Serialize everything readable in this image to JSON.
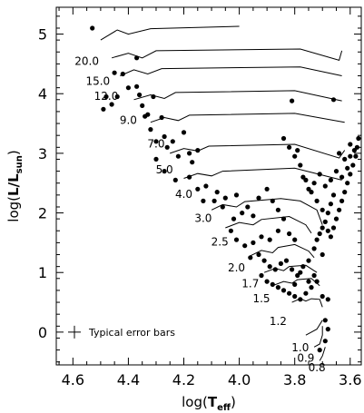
{
  "chart_data": {
    "type": "scatter",
    "title": "",
    "xlabel": "log(T_eff)",
    "ylabel": "log(L/L_sun)",
    "xlim": [
      4.66,
      3.56
    ],
    "ylim": [
      -0.55,
      5.45
    ],
    "xaxis_reversed": true,
    "xticks": [
      4.6,
      4.4,
      4.2,
      4.0,
      3.8,
      3.6
    ],
    "xtick_labels": [
      "4.6",
      "4.4",
      "4.2",
      "4.0",
      "3.8",
      "3.6"
    ],
    "yticks": [
      0,
      1,
      2,
      3,
      4,
      5
    ],
    "ytick_labels": [
      "0",
      "1",
      "2",
      "3",
      "4",
      "5"
    ],
    "legend": {
      "label": "Typical error bars",
      "position": "bottom-left"
    },
    "tracks": [
      {
        "mass_label": "20.0",
        "points": [
          [
            4.5,
            4.9
          ],
          [
            4.44,
            5.07
          ],
          [
            4.4,
            5.0
          ],
          [
            4.32,
            5.09
          ],
          [
            4.0,
            5.13
          ]
        ]
      },
      {
        "mass_label": "15.0",
        "points": [
          [
            4.46,
            4.6
          ],
          [
            4.4,
            4.68
          ],
          [
            4.35,
            4.6
          ],
          [
            4.3,
            4.72
          ],
          [
            3.78,
            4.75
          ],
          [
            3.64,
            4.56
          ],
          [
            3.63,
            4.72
          ]
        ]
      },
      {
        "mass_label": "12.0",
        "points": [
          [
            4.43,
            4.3
          ],
          [
            4.38,
            4.4
          ],
          [
            4.33,
            4.33
          ],
          [
            4.28,
            4.42
          ],
          [
            3.78,
            4.45
          ],
          [
            3.63,
            4.3
          ]
        ]
      },
      {
        "mass_label": "9.0",
        "points": [
          [
            4.38,
            3.9
          ],
          [
            4.32,
            3.98
          ],
          [
            4.27,
            3.92
          ],
          [
            4.23,
            4.02
          ],
          [
            3.8,
            4.05
          ],
          [
            3.63,
            3.88
          ]
        ]
      },
      {
        "mass_label": "7.0",
        "points": [
          [
            4.32,
            3.52
          ],
          [
            4.27,
            3.6
          ],
          [
            4.22,
            3.55
          ],
          [
            4.18,
            3.64
          ],
          [
            3.8,
            3.67
          ],
          [
            3.62,
            3.52
          ]
        ]
      },
      {
        "mass_label": "5.0",
        "points": [
          [
            4.25,
            3.0
          ],
          [
            4.2,
            3.08
          ],
          [
            4.15,
            3.04
          ],
          [
            4.11,
            3.12
          ],
          [
            3.8,
            3.15
          ],
          [
            3.64,
            2.92
          ],
          [
            3.62,
            3.05
          ]
        ]
      },
      {
        "mass_label": "4.0",
        "points": [
          [
            4.2,
            2.58
          ],
          [
            4.15,
            2.66
          ],
          [
            4.1,
            2.62
          ],
          [
            4.06,
            2.7
          ],
          [
            3.8,
            2.75
          ],
          [
            3.63,
            2.55
          ]
        ]
      },
      {
        "mass_label": "3.0",
        "points": [
          [
            4.1,
            2.05
          ],
          [
            4.06,
            2.14
          ],
          [
            4.01,
            2.1
          ],
          [
            3.98,
            2.19
          ],
          [
            3.85,
            2.24
          ],
          [
            3.78,
            2.2
          ],
          [
            3.72,
            2.05
          ],
          [
            3.7,
            1.8
          ]
        ]
      },
      {
        "mass_label": "2.5",
        "points": [
          [
            4.05,
            1.75
          ],
          [
            4.0,
            1.84
          ],
          [
            3.95,
            1.8
          ],
          [
            3.92,
            1.89
          ],
          [
            3.82,
            1.94
          ],
          [
            3.76,
            1.8
          ],
          [
            3.74,
            1.66
          ]
        ]
      },
      {
        "mass_label": "2.0",
        "points": [
          [
            3.96,
            1.28
          ],
          [
            3.92,
            1.37
          ],
          [
            3.88,
            1.33
          ],
          [
            3.86,
            1.42
          ],
          [
            3.8,
            1.47
          ],
          [
            3.75,
            1.36
          ],
          [
            3.73,
            1.25
          ]
        ]
      },
      {
        "mass_label": "1.7",
        "points": [
          [
            3.91,
            1.0
          ],
          [
            3.87,
            1.07
          ],
          [
            3.84,
            1.03
          ],
          [
            3.82,
            1.1
          ],
          [
            3.76,
            1.12
          ],
          [
            3.72,
            1.0
          ]
        ]
      },
      {
        "mass_label": "1.5",
        "points": [
          [
            3.88,
            0.78
          ],
          [
            3.84,
            0.85
          ],
          [
            3.81,
            0.82
          ],
          [
            3.79,
            0.88
          ],
          [
            3.74,
            0.9
          ],
          [
            3.71,
            0.78
          ]
        ]
      },
      {
        "mass_label": "1.2",
        "points": [
          [
            3.81,
            0.5
          ],
          [
            3.78,
            0.56
          ],
          [
            3.76,
            0.52
          ],
          [
            3.74,
            0.56
          ],
          [
            3.71,
            0.55
          ],
          [
            3.7,
            0.42
          ]
        ]
      },
      {
        "mass_label": "1.0",
        "points": [
          [
            3.76,
            -0.05
          ],
          [
            3.74,
            0.0
          ],
          [
            3.72,
            0.05
          ],
          [
            3.7,
            0.2
          ]
        ]
      },
      {
        "mass_label": "0.9",
        "points": [
          [
            3.73,
            -0.25
          ],
          [
            3.71,
            -0.2
          ],
          [
            3.7,
            -0.05
          ],
          [
            3.7,
            0.1
          ]
        ]
      },
      {
        "mass_label": "0.8",
        "points": [
          [
            3.71,
            -0.48
          ],
          [
            3.7,
            -0.4
          ],
          [
            3.69,
            -0.25
          ]
        ]
      }
    ],
    "mass_label_anchors": [
      {
        "label": "20.0",
        "x": 4.55,
        "y": 4.48
      },
      {
        "label": "15.0",
        "x": 4.51,
        "y": 4.15
      },
      {
        "label": "12.0",
        "x": 4.48,
        "y": 3.9
      },
      {
        "label": "9.0",
        "x": 4.4,
        "y": 3.49
      },
      {
        "label": "7.0",
        "x": 4.3,
        "y": 3.1
      },
      {
        "label": "5.0",
        "x": 4.27,
        "y": 2.66
      },
      {
        "label": "4.0",
        "x": 4.2,
        "y": 2.25
      },
      {
        "label": "3.0",
        "x": 4.13,
        "y": 1.85
      },
      {
        "label": "2.5",
        "x": 4.07,
        "y": 1.45
      },
      {
        "label": "2.0",
        "x": 4.01,
        "y": 1.02
      },
      {
        "label": "1.7",
        "x": 3.96,
        "y": 0.75
      },
      {
        "label": "1.5",
        "x": 3.92,
        "y": 0.5
      },
      {
        "label": "1.2",
        "x": 3.86,
        "y": 0.12
      },
      {
        "label": "1.0",
        "x": 3.78,
        "y": -0.32
      },
      {
        "label": "0.9",
        "x": 3.76,
        "y": -0.5
      },
      {
        "label": "0.8",
        "x": 3.72,
        "y": -0.66
      }
    ],
    "stars": [
      [
        4.53,
        5.1
      ],
      [
        4.37,
        4.6
      ],
      [
        4.45,
        4.35
      ],
      [
        4.42,
        4.33
      ],
      [
        4.4,
        4.1
      ],
      [
        4.48,
        3.95
      ],
      [
        4.46,
        3.82
      ],
      [
        4.49,
        3.74
      ],
      [
        4.44,
        3.95
      ],
      [
        4.37,
        4.12
      ],
      [
        4.36,
        3.98
      ],
      [
        4.35,
        3.8
      ],
      [
        4.33,
        3.65
      ],
      [
        4.31,
        3.95
      ],
      [
        4.28,
        3.6
      ],
      [
        4.34,
        3.62
      ],
      [
        4.32,
        3.4
      ],
      [
        4.3,
        3.2
      ],
      [
        4.27,
        3.28
      ],
      [
        4.26,
        3.1
      ],
      [
        4.24,
        3.2
      ],
      [
        4.22,
        2.95
      ],
      [
        4.2,
        3.35
      ],
      [
        4.18,
        3.0
      ],
      [
        4.17,
        2.85
      ],
      [
        4.15,
        3.05
      ],
      [
        4.3,
        2.9
      ],
      [
        4.27,
        2.7
      ],
      [
        4.23,
        2.55
      ],
      [
        4.18,
        2.6
      ],
      [
        4.15,
        2.4
      ],
      [
        4.12,
        2.45
      ],
      [
        4.08,
        2.35
      ],
      [
        4.05,
        2.25
      ],
      [
        4.01,
        2.3
      ],
      [
        4.13,
        2.2
      ],
      [
        4.09,
        2.2
      ],
      [
        4.06,
        2.1
      ],
      [
        4.02,
        1.9
      ],
      [
        3.99,
        2.0
      ],
      [
        3.97,
        2.1
      ],
      [
        3.95,
        1.95
      ],
      [
        3.93,
        2.25
      ],
      [
        3.9,
        2.4
      ],
      [
        3.88,
        2.2
      ],
      [
        3.86,
        2.05
      ],
      [
        3.84,
        1.9
      ],
      [
        3.82,
        1.65
      ],
      [
        3.8,
        1.55
      ],
      [
        3.86,
        1.7
      ],
      [
        3.89,
        1.55
      ],
      [
        3.92,
        1.6
      ],
      [
        3.95,
        1.5
      ],
      [
        3.98,
        1.45
      ],
      [
        4.01,
        1.55
      ],
      [
        4.03,
        1.7
      ],
      [
        3.96,
        1.25
      ],
      [
        3.93,
        1.3
      ],
      [
        3.91,
        1.2
      ],
      [
        3.89,
        1.1
      ],
      [
        3.87,
        1.05
      ],
      [
        3.85,
        1.15
      ],
      [
        3.83,
        1.2
      ],
      [
        3.81,
        1.05
      ],
      [
        3.79,
        0.95
      ],
      [
        3.77,
        1.1
      ],
      [
        3.75,
        1.2
      ],
      [
        3.92,
        0.95
      ],
      [
        3.9,
        0.85
      ],
      [
        3.88,
        0.8
      ],
      [
        3.86,
        0.75
      ],
      [
        3.84,
        0.7
      ],
      [
        3.82,
        0.65
      ],
      [
        3.8,
        0.6
      ],
      [
        3.78,
        0.55
      ],
      [
        3.76,
        0.65
      ],
      [
        3.74,
        0.75
      ],
      [
        3.72,
        0.85
      ],
      [
        3.7,
        0.6
      ],
      [
        3.68,
        0.55
      ],
      [
        3.69,
        0.2
      ],
      [
        3.68,
        0.05
      ],
      [
        3.69,
        -0.15
      ],
      [
        3.71,
        -0.3
      ],
      [
        3.8,
        0.8
      ],
      [
        3.78,
        1.0
      ],
      [
        3.73,
        1.4
      ],
      [
        3.72,
        1.55
      ],
      [
        3.71,
        1.65
      ],
      [
        3.7,
        1.75
      ],
      [
        3.69,
        1.85
      ],
      [
        3.68,
        1.7
      ],
      [
        3.67,
        1.6
      ],
      [
        3.66,
        1.75
      ],
      [
        3.65,
        1.9
      ],
      [
        3.64,
        2.05
      ],
      [
        3.63,
        2.2
      ],
      [
        3.62,
        2.35
      ],
      [
        3.61,
        2.5
      ],
      [
        3.6,
        2.65
      ],
      [
        3.59,
        2.8
      ],
      [
        3.58,
        2.95
      ],
      [
        3.575,
        3.1
      ],
      [
        3.57,
        3.25
      ],
      [
        3.66,
        2.3
      ],
      [
        3.67,
        2.15
      ],
      [
        3.68,
        2.0
      ],
      [
        3.7,
        2.05
      ],
      [
        3.72,
        2.2
      ],
      [
        3.74,
        2.35
      ],
      [
        3.76,
        2.55
      ],
      [
        3.78,
        2.8
      ],
      [
        3.8,
        2.95
      ],
      [
        3.82,
        3.1
      ],
      [
        3.84,
        3.25
      ],
      [
        3.79,
        3.05
      ],
      [
        3.77,
        2.6
      ],
      [
        3.75,
        2.4
      ],
      [
        3.73,
        2.5
      ],
      [
        3.71,
        2.65
      ],
      [
        3.69,
        2.45
      ],
      [
        3.67,
        2.55
      ],
      [
        3.65,
        2.7
      ],
      [
        3.63,
        2.6
      ],
      [
        3.61,
        2.75
      ],
      [
        3.6,
        2.95
      ],
      [
        3.585,
        3.05
      ],
      [
        3.6,
        3.15
      ],
      [
        3.62,
        2.9
      ],
      [
        3.64,
        3.0
      ],
      [
        3.66,
        3.9
      ],
      [
        3.81,
        3.88
      ],
      [
        3.7,
        1.3
      ],
      [
        3.73,
        0.95
      ],
      [
        3.75,
        0.85
      ]
    ]
  }
}
